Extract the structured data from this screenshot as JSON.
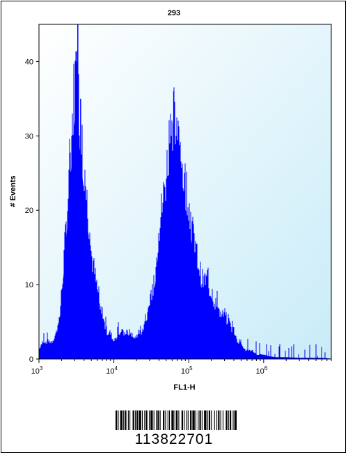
{
  "chart_data": {
    "type": "area",
    "title": "293",
    "xlabel": "FL1-H",
    "ylabel": "# Events",
    "x_scale": "log",
    "xlim": [
      1000,
      8000000
    ],
    "ylim": [
      0,
      45
    ],
    "grid": false,
    "x_ticks": [
      {
        "value": 1000,
        "base": "10",
        "exp": "3"
      },
      {
        "value": 10000,
        "base": "10",
        "exp": "4"
      },
      {
        "value": 100000,
        "base": "10",
        "exp": "5"
      },
      {
        "value": 1000000,
        "base": "10",
        "exp": "6"
      }
    ],
    "y_ticks": [
      0,
      10,
      20,
      30,
      40
    ],
    "series": [
      {
        "color": "#0000ff",
        "x": [
          1000,
          1100,
          1300,
          1500,
          1700,
          1900,
          2100,
          2300,
          2500,
          2700,
          2900,
          3100,
          3200,
          3300,
          3500,
          3800,
          4200,
          4600,
          5000,
          5500,
          6000,
          6500,
          7000,
          7500,
          8000,
          9000,
          10000,
          11500,
          13000,
          15000,
          17000,
          19000,
          21000,
          23000,
          26000,
          29000,
          32000,
          36000,
          40000,
          45000,
          50000,
          55000,
          60000,
          65000,
          70000,
          75000,
          80000,
          90000,
          100000,
          110000,
          120000,
          135000,
          150000,
          170000,
          190000,
          210000,
          240000,
          270000,
          300000,
          350000,
          400000,
          450000,
          500000,
          560000,
          630000,
          700000,
          800000,
          900000,
          1000000,
          1200000,
          1500000,
          2000000,
          3000000,
          4000000,
          5000000,
          6000000,
          8000000
        ],
        "y": [
          1,
          2,
          2,
          2,
          3,
          5,
          10,
          15,
          20,
          25,
          30,
          33,
          40,
          31,
          28,
          24,
          20,
          16,
          12,
          10,
          8,
          6,
          5,
          4,
          3,
          3,
          2,
          3,
          3,
          3,
          3,
          2,
          3,
          3,
          4,
          5,
          7,
          10,
          15,
          18,
          21,
          25,
          28,
          27,
          26,
          24,
          22,
          20,
          18,
          15,
          13,
          11,
          9,
          9,
          8,
          7,
          6,
          5,
          5,
          4,
          3,
          2,
          2,
          1,
          1,
          1,
          0.5,
          0.5,
          0.5,
          0.3,
          0.2,
          0.2,
          0.1,
          0.1,
          0.1,
          0.1,
          0
        ]
      }
    ],
    "peaks": [
      {
        "x": 3300,
        "y": 45
      },
      {
        "x": 3600,
        "y": 35
      },
      {
        "x": 63000,
        "y": 36
      },
      {
        "x": 58000,
        "y": 30
      }
    ]
  },
  "barcode": {
    "number": "113822701",
    "bars": [
      2,
      1,
      1,
      2,
      3,
      1,
      1,
      1,
      2,
      2,
      1,
      1,
      1,
      3,
      2,
      1,
      1,
      1,
      2,
      1,
      3,
      1,
      1,
      2,
      1,
      1,
      2,
      2,
      1,
      1,
      3,
      1,
      1,
      2,
      1,
      1,
      2,
      1,
      1,
      3,
      2,
      1,
      1,
      2,
      1,
      1,
      1,
      2,
      3,
      1,
      1,
      1,
      2,
      1,
      1,
      3,
      2,
      1,
      1,
      2,
      1,
      1,
      1,
      2,
      2,
      1,
      3,
      1,
      1,
      2,
      1,
      1,
      2,
      1,
      1,
      2,
      3,
      1,
      1,
      1,
      2,
      1,
      1,
      3,
      1,
      2,
      1,
      1,
      2,
      1,
      1,
      2,
      1,
      3,
      2,
      1,
      1,
      1,
      2,
      2,
      1,
      1,
      3
    ]
  }
}
